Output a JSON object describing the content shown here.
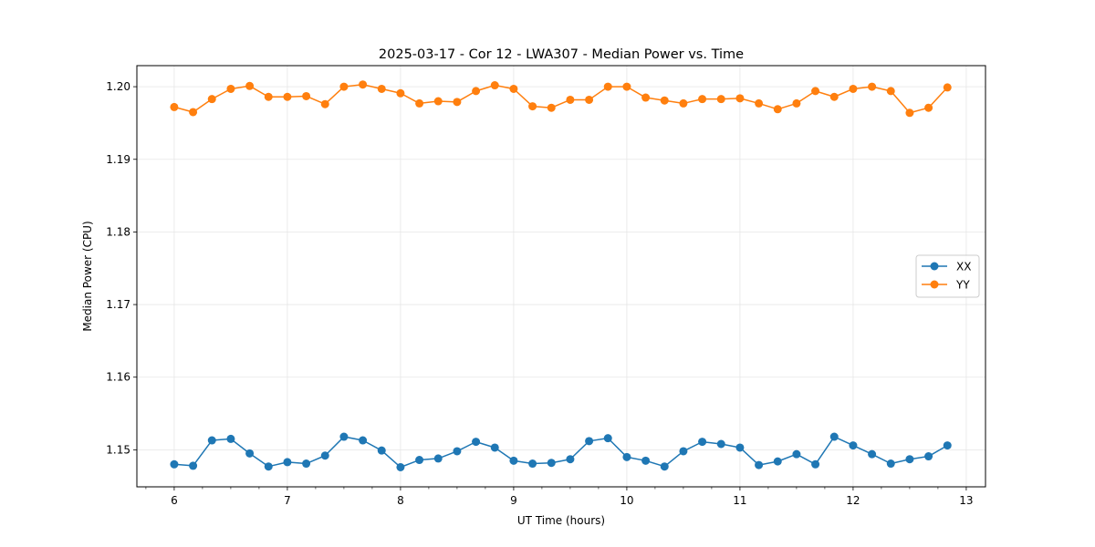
{
  "chart_data": {
    "type": "line",
    "title": "2025-03-17 - Cor 12 - LWA307 - Median Power vs. Time",
    "xlabel": "UT Time (hours)",
    "ylabel": "Median Power (CPU)",
    "xlim": [
      5.67,
      13.17
    ],
    "ylim": [
      1.1449,
      1.2029
    ],
    "xticks": [
      6,
      7,
      8,
      9,
      10,
      11,
      12,
      13
    ],
    "xtick_labels": [
      "6",
      "7",
      "8",
      "9",
      "10",
      "11",
      "12",
      "13"
    ],
    "yticks": [
      1.15,
      1.16,
      1.17,
      1.18,
      1.19,
      1.2
    ],
    "ytick_labels": [
      "1.15",
      "1.16",
      "1.17",
      "1.18",
      "1.19",
      "1.20"
    ],
    "grid": true,
    "legend_position": "center-right",
    "x": [
      6.0,
      6.1667,
      6.3333,
      6.5,
      6.6667,
      6.8333,
      7.0,
      7.1667,
      7.3333,
      7.5,
      7.6667,
      7.8333,
      8.0,
      8.1667,
      8.3333,
      8.5,
      8.6667,
      8.8333,
      9.0,
      9.1667,
      9.3333,
      9.5,
      9.6667,
      9.8333,
      10.0,
      10.1667,
      10.3333,
      10.5,
      10.6667,
      10.8333,
      11.0,
      11.1667,
      11.3333,
      11.5,
      11.6667,
      11.8333,
      12.0,
      12.1667,
      12.3333,
      12.5,
      12.6667,
      12.8333
    ],
    "series": [
      {
        "name": "XX",
        "color": "#1f77b4",
        "values": [
          1.148,
          1.1478,
          1.1513,
          1.1515,
          1.1495,
          1.1477,
          1.1483,
          1.1481,
          1.1492,
          1.1518,
          1.1513,
          1.1499,
          1.1476,
          1.1486,
          1.1488,
          1.1498,
          1.1511,
          1.1503,
          1.1485,
          1.1481,
          1.1482,
          1.1487,
          1.1512,
          1.1516,
          1.149,
          1.1485,
          1.1477,
          1.1498,
          1.1511,
          1.1508,
          1.1503,
          1.1479,
          1.1484,
          1.1494,
          1.148,
          1.1518,
          1.1506,
          1.1494,
          1.1481,
          1.1487,
          1.1491,
          1.1506
        ]
      },
      {
        "name": "YY",
        "color": "#ff7f0e",
        "values": [
          1.1972,
          1.1965,
          1.1983,
          1.1997,
          1.2001,
          1.1986,
          1.1986,
          1.1987,
          1.1976,
          1.2,
          1.2003,
          1.1997,
          1.1991,
          1.1977,
          1.198,
          1.1979,
          1.1994,
          1.2002,
          1.1997,
          1.1973,
          1.1971,
          1.1982,
          1.1982,
          1.2,
          1.2,
          1.1985,
          1.1981,
          1.1977,
          1.1983,
          1.1983,
          1.1984,
          1.1977,
          1.1969,
          1.1977,
          1.1994,
          1.1986,
          1.1997,
          1.2,
          1.1994,
          1.1964,
          1.1971,
          1.1999
        ]
      }
    ]
  }
}
